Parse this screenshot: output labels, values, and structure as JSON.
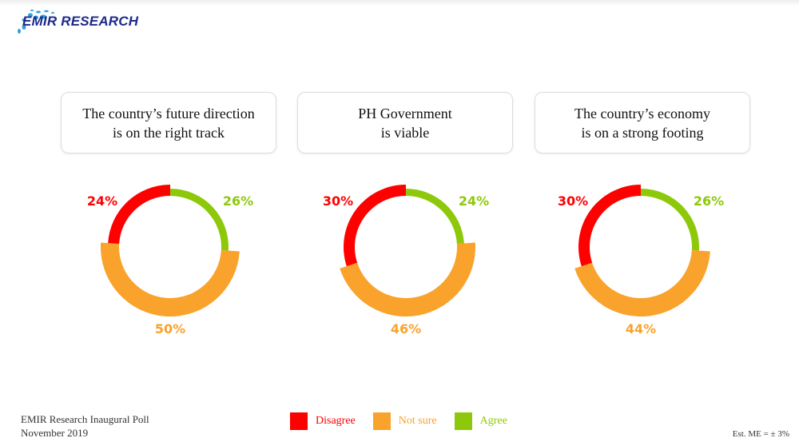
{
  "logo": {
    "text": "EMIR RESEARCH"
  },
  "colors": {
    "disagree": "#ff0000",
    "not_sure": "#f9a22c",
    "agree": "#8dc90a"
  },
  "chart_data": [
    {
      "type": "pie",
      "title": "The country’s future direction\nis on the right track",
      "title_lines": [
        "The country’s future direction",
        "is on the right track"
      ],
      "categories": [
        "Agree",
        "Not sure",
        "Disagree"
      ],
      "values": [
        26,
        50,
        24
      ],
      "labels": [
        "26%",
        "50%",
        "24%"
      ]
    },
    {
      "type": "pie",
      "title": "PH Government\nis viable",
      "title_lines": [
        "PH Government",
        "is viable"
      ],
      "categories": [
        "Agree",
        "Not sure",
        "Disagree"
      ],
      "values": [
        24,
        46,
        30
      ],
      "labels": [
        "24%",
        "46%",
        "30%"
      ]
    },
    {
      "type": "pie",
      "title": "The country’s economy\nis on a strong footing",
      "title_lines": [
        "The country’s economy",
        "is on a strong footing"
      ],
      "categories": [
        "Agree",
        "Not sure",
        "Disagree"
      ],
      "values": [
        26,
        44,
        30
      ],
      "labels": [
        "26%",
        "44%",
        "30%"
      ]
    }
  ],
  "legend": [
    "Disagree",
    "Not sure",
    "Agree"
  ],
  "footer": {
    "line1": "EMIR Research Inaugural Poll",
    "line2": "November 2019",
    "me": "Est. ME = ± 3%"
  }
}
